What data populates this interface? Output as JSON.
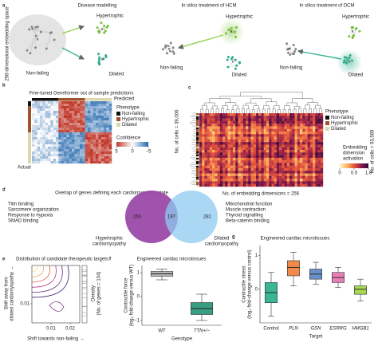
{
  "panel_a": {
    "label": "a",
    "axis_text": "256-dimensional embedding space",
    "disease_title": "Disease modelling",
    "hcm_title": "In silico treatment of HCM",
    "dcm_title": "In silico treatment of DCM",
    "states": [
      "Non-failing",
      "Hypertrophic",
      "Dilated"
    ]
  },
  "panel_b": {
    "label": "b",
    "title": "Fine-tuned Geneformer out of sample predictions",
    "predicted": "Predicted",
    "actual": "Actual",
    "legend_title": "Phenotype",
    "phenotypes": [
      "Non-failing",
      "Hypertrophic",
      "Dilated"
    ],
    "confidence_title": "Confidence",
    "confidence_ticks": [
      5,
      0,
      {
        "value": -5,
        "label": "−5"
      }
    ],
    "cells": "No. of cells = 39,006"
  },
  "panel_c": {
    "label": "c",
    "legend_title": "Phenotype",
    "phenotypes": [
      "Non-failing",
      "Hypertrophic",
      "Dilated"
    ],
    "activation_title": [
      "Embedding",
      "dimension",
      "activation"
    ],
    "activation_ticks": [
      0,
      0.5,
      {
        "value": 1,
        "label": "1.0"
      }
    ],
    "cells": "No. of cells = 93,589",
    "dims": "No. of embedding dimensions = 256"
  },
  "panel_d": {
    "label": "d",
    "title": "Overlap of genes defining each cardiomyopathy state",
    "left_terms": [
      "Titin binding",
      "Sarcomere organization",
      "Response to hypoxia",
      "SMAD binding"
    ],
    "right_terms": [
      "Mitochondrial function",
      "Muscle contraction",
      "Thyroid signalling",
      "Beta-catenin binding"
    ],
    "hcm_only": 250,
    "shared": 197,
    "dcm_only": 281,
    "hcm_label": [
      "Hypertrophic",
      "cardiomyopathy"
    ],
    "dcm_label": [
      "Dilated",
      "cardiomyopathy"
    ]
  },
  "panel_e": {
    "label": "e",
    "title": "Distribution of candidate therapeutic targets",
    "xlabel": "Shift towards non-failing →",
    "ylabel": [
      "Shift away from",
      "dilated cardiomyopathy →"
    ],
    "xticks": [
      0.01,
      0.02
    ],
    "yticks": [
      0.01
    ],
    "density_label": "Density",
    "density_sublabel": "(No. of genes = 104)"
  },
  "chart_data": [
    {
      "type": "box",
      "panel_label": "f",
      "title": "Engineered cardiac microtissues",
      "ylabel": [
        "Contractile force",
        "(log₂ fold-change versus WT)"
      ],
      "xlabel": "Genotype",
      "categories": [
        "WT",
        "TTN+/−"
      ],
      "colors": [
        "#b8b8b8",
        "#3a9e82"
      ],
      "whisker_low": [
        0.7,
        -1.0
      ],
      "q1": [
        0.85,
        -0.75
      ],
      "median": [
        0.95,
        -0.5
      ],
      "q3": [
        1.05,
        -0.25
      ],
      "whisker_high": [
        1.15,
        0.1
      ],
      "ylim": [
        -1.2,
        1.3
      ],
      "yticks": [
        1,
        0,
        {
          "value": -1,
          "label": "−1"
        }
      ]
    },
    {
      "type": "box",
      "panel_label": "g",
      "title": "Engineered cardiac microtissues",
      "ylabel": [
        "Contractile stress",
        "(log₂ fold-change versus control)"
      ],
      "xlabel": "Target",
      "categories": [
        "Control",
        "PLN",
        "GSN",
        "ESRRG",
        "HMGB1"
      ],
      "colors": [
        "#3ab596",
        "#f08a4b",
        "#6a8fc8",
        "#e67fb8",
        "#a6d854"
      ],
      "whisker_low": [
        -0.8,
        0.1,
        0.15,
        0.05,
        -0.35
      ],
      "q1": [
        -0.4,
        0.4,
        0.3,
        0.2,
        -0.15
      ],
      "median": [
        -0.1,
        0.65,
        0.45,
        0.35,
        0.0
      ],
      "q3": [
        0.2,
        0.85,
        0.6,
        0.5,
        0.1
      ],
      "whisker_high": [
        0.5,
        1.1,
        0.8,
        0.65,
        0.3
      ],
      "ylim": [
        -1,
        1.3
      ],
      "yticks": [
        1,
        0
      ]
    }
  ]
}
